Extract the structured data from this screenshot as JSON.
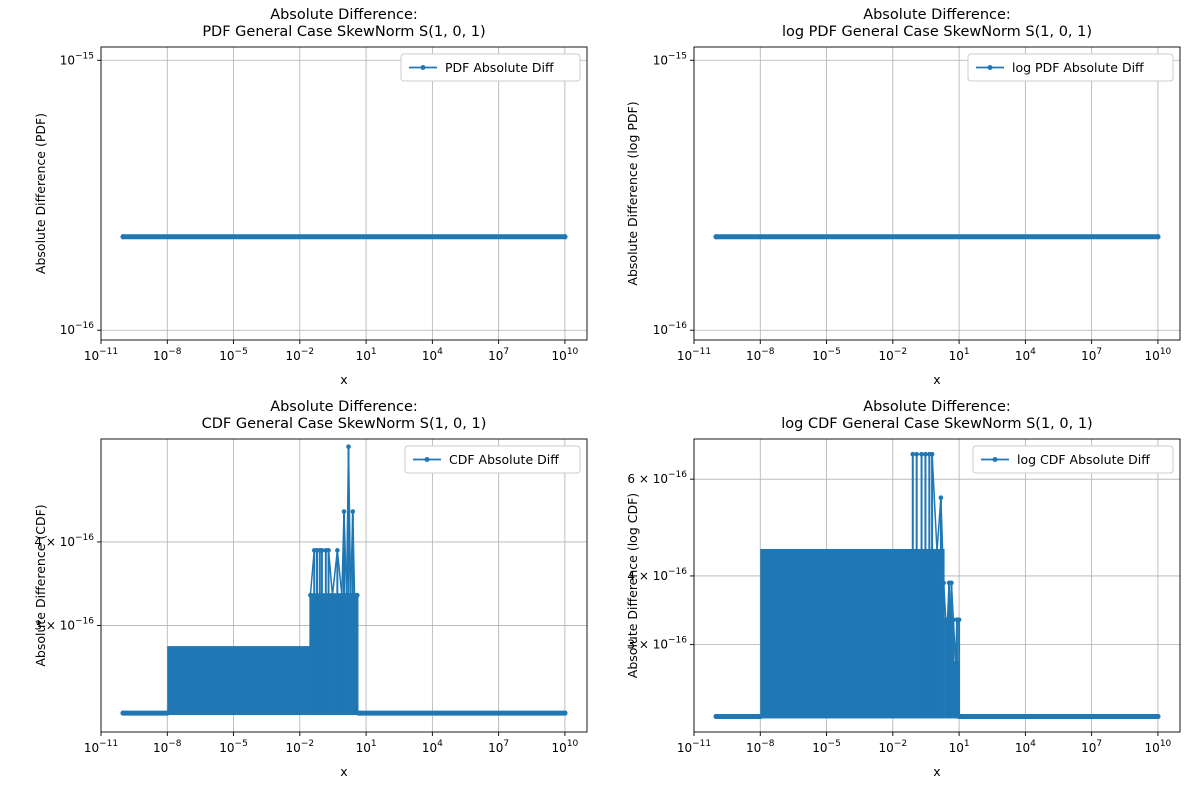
{
  "figure": {
    "background": "#ffffff",
    "series_color": "#1f77b4",
    "grid_color": "#b0b0b0"
  },
  "chart_data": [
    {
      "type": "line",
      "title_lines": [
        "Absolute Difference:",
        "PDF General Case SkewNorm S(1, 0, 1)"
      ],
      "xlabel": "x",
      "ylabel": "Absolute Difference (PDF)",
      "xscale": "log",
      "yscale": "log",
      "xlim": [
        1e-11,
        100000000000.0
      ],
      "ylim": [
        9.2e-17,
        1.12e-15
      ],
      "xticks": [
        {
          "value": 1e-11,
          "base": "10",
          "exp": "−11"
        },
        {
          "value": 1e-08,
          "base": "10",
          "exp": "−8"
        },
        {
          "value": 1e-05,
          "base": "10",
          "exp": "−5"
        },
        {
          "value": 0.01,
          "base": "10",
          "exp": "−2"
        },
        {
          "value": 10.0,
          "base": "10",
          "exp": "1"
        },
        {
          "value": 10000.0,
          "base": "10",
          "exp": "4"
        },
        {
          "value": 10000000.0,
          "base": "10",
          "exp": "7"
        },
        {
          "value": 10000000000.0,
          "base": "10",
          "exp": "10"
        }
      ],
      "yticks": [
        {
          "value": 1e-16,
          "mant": "",
          "base": "10",
          "exp": "−16"
        },
        {
          "value": 1e-15,
          "mant": "",
          "base": "10",
          "exp": "−15"
        }
      ],
      "grid": true,
      "legend": {
        "label": "PDF Absolute Diff",
        "position": "top-right"
      },
      "series": [
        {
          "name": "PDF Absolute Diff",
          "segments": [
            {
              "x": [
                1e-10,
                10000000000.0
              ],
              "y": [
                2.22e-16,
                2.22e-16
              ],
              "kind": "flat"
            }
          ]
        }
      ]
    },
    {
      "type": "line",
      "title_lines": [
        "Absolute Difference:",
        "log PDF General Case SkewNorm S(1, 0, 1)"
      ],
      "xlabel": "x",
      "ylabel": "Absolute Difference (log PDF)",
      "xscale": "log",
      "yscale": "log",
      "xlim": [
        1e-11,
        100000000000.0
      ],
      "ylim": [
        9.2e-17,
        1.12e-15
      ],
      "xticks": [
        {
          "value": 1e-11,
          "base": "10",
          "exp": "−11"
        },
        {
          "value": 1e-08,
          "base": "10",
          "exp": "−8"
        },
        {
          "value": 1e-05,
          "base": "10",
          "exp": "−5"
        },
        {
          "value": 0.01,
          "base": "10",
          "exp": "−2"
        },
        {
          "value": 10.0,
          "base": "10",
          "exp": "1"
        },
        {
          "value": 10000.0,
          "base": "10",
          "exp": "4"
        },
        {
          "value": 10000000.0,
          "base": "10",
          "exp": "7"
        },
        {
          "value": 10000000000.0,
          "base": "10",
          "exp": "10"
        }
      ],
      "yticks": [
        {
          "value": 1e-16,
          "mant": "",
          "base": "10",
          "exp": "−16"
        },
        {
          "value": 1e-15,
          "mant": "",
          "base": "10",
          "exp": "−15"
        }
      ],
      "grid": true,
      "legend": {
        "label": "log PDF Absolute Diff",
        "position": "top-right"
      },
      "series": [
        {
          "name": "log PDF Absolute Diff",
          "segments": [
            {
              "x": [
                1e-10,
                10000000000.0
              ],
              "y": [
                2.22e-16,
                2.22e-16
              ],
              "kind": "flat"
            }
          ]
        }
      ]
    },
    {
      "type": "line",
      "title_lines": [
        "Absolute Difference:",
        "CDF General Case SkewNorm S(1, 0, 1)"
      ],
      "xlabel": "x",
      "ylabel": "Absolute Difference (CDF)",
      "xscale": "log",
      "yscale": "log",
      "xlim": [
        1e-11,
        100000000000.0
      ],
      "ylim": [
        2.08e-16,
        5.7e-16
      ],
      "xticks": [
        {
          "value": 1e-11,
          "base": "10",
          "exp": "−11"
        },
        {
          "value": 1e-08,
          "base": "10",
          "exp": "−8"
        },
        {
          "value": 1e-05,
          "base": "10",
          "exp": "−5"
        },
        {
          "value": 0.01,
          "base": "10",
          "exp": "−2"
        },
        {
          "value": 10.0,
          "base": "10",
          "exp": "1"
        },
        {
          "value": 10000.0,
          "base": "10",
          "exp": "4"
        },
        {
          "value": 10000000.0,
          "base": "10",
          "exp": "7"
        },
        {
          "value": 10000000000.0,
          "base": "10",
          "exp": "10"
        }
      ],
      "yticks": [
        {
          "value": 3e-16,
          "mant": "3 × ",
          "base": "10",
          "exp": "−16"
        },
        {
          "value": 4e-16,
          "mant": "4 × ",
          "base": "10",
          "exp": "−16"
        }
      ],
      "grid": true,
      "legend": {
        "label": "CDF Absolute Diff",
        "position": "top-right"
      },
      "series": [
        {
          "name": "CDF Absolute Diff",
          "segments": [
            {
              "x": [
                1e-10,
                1e-08
              ],
              "y": [
                2.22e-16,
                2.22e-16
              ],
              "kind": "flat"
            },
            {
              "x": [
                1e-08,
                0.03
              ],
              "y": [
                2.22e-16,
                2.776e-16
              ],
              "kind": "band"
            },
            {
              "x": [
                0.03,
                4.5
              ],
              "y": [
                2.22e-16,
                3.33e-16
              ],
              "kind": "band"
            },
            {
              "x": [
                4.5,
                10000000000.0
              ],
              "y": [
                2.22e-16,
                2.22e-16
              ],
              "kind": "flat"
            },
            {
              "x": [
                0.03,
                0.045,
                0.06,
                0.08,
                0.1,
                0.15,
                0.2,
                0.3,
                0.5,
                0.8,
                1.0,
                1.3,
                1.6,
                2.0,
                2.5,
                3.0,
                3.5,
                4.0
              ],
              "y": [
                3.33e-16,
                3.886e-16,
                3.886e-16,
                3.886e-16,
                3.886e-16,
                3.886e-16,
                3.886e-16,
                3.33e-16,
                3.886e-16,
                3.33e-16,
                4.441e-16,
                3.33e-16,
                5.551e-16,
                3.33e-16,
                4.441e-16,
                3.33e-16,
                3.33e-16,
                3.33e-16
              ],
              "kind": "spikes"
            }
          ]
        }
      ]
    },
    {
      "type": "line",
      "title_lines": [
        "Absolute Difference:",
        "log CDF General Case SkewNorm S(1, 0, 1)"
      ],
      "xlabel": "x",
      "ylabel": "Absolute Difference (log CDF)",
      "xscale": "log",
      "yscale": "log",
      "xlim": [
        1e-11,
        100000000000.0
      ],
      "ylim": [
        2.08e-16,
        7.1e-16
      ],
      "xticks": [
        {
          "value": 1e-11,
          "base": "10",
          "exp": "−11"
        },
        {
          "value": 1e-08,
          "base": "10",
          "exp": "−8"
        },
        {
          "value": 1e-05,
          "base": "10",
          "exp": "−5"
        },
        {
          "value": 0.01,
          "base": "10",
          "exp": "−2"
        },
        {
          "value": 10.0,
          "base": "10",
          "exp": "1"
        },
        {
          "value": 10000.0,
          "base": "10",
          "exp": "4"
        },
        {
          "value": 10000000.0,
          "base": "10",
          "exp": "7"
        },
        {
          "value": 10000000000.0,
          "base": "10",
          "exp": "10"
        }
      ],
      "yticks": [
        {
          "value": 3e-16,
          "mant": "3 × ",
          "base": "10",
          "exp": "−16"
        },
        {
          "value": 4e-16,
          "mant": "4 × ",
          "base": "10",
          "exp": "−16"
        },
        {
          "value": 6e-16,
          "mant": "6 × ",
          "base": "10",
          "exp": "−16"
        }
      ],
      "grid": true,
      "legend": {
        "label": "log CDF Absolute Diff",
        "position": "top-right"
      },
      "series": [
        {
          "name": "log CDF Absolute Diff",
          "segments": [
            {
              "x": [
                1e-10,
                1e-08
              ],
              "y": [
                2.22e-16,
                2.22e-16
              ],
              "kind": "flat"
            },
            {
              "x": [
                1e-08,
                2.2
              ],
              "y": [
                2.22e-16,
                4.441e-16
              ],
              "kind": "band"
            },
            {
              "x": [
                2.2,
                5.0
              ],
              "y": [
                2.22e-16,
                3.33e-16
              ],
              "kind": "band"
            },
            {
              "x": [
                5.0,
                10.0
              ],
              "y": [
                2.22e-16,
                2.776e-16
              ],
              "kind": "band"
            },
            {
              "x": [
                10.0,
                10000000000.0
              ],
              "y": [
                2.22e-16,
                2.22e-16
              ],
              "kind": "flat"
            },
            {
              "x": [
                0.08,
                0.12,
                0.2,
                0.3,
                0.45,
                0.6,
                1.0,
                1.5,
                2.0,
                2.5,
                3.0,
                3.5,
                4.0,
                4.5,
                5.5,
                7.0,
                8.0,
                10.0
              ],
              "y": [
                6.661e-16,
                6.661e-16,
                6.661e-16,
                6.661e-16,
                6.661e-16,
                6.661e-16,
                4.441e-16,
                5.551e-16,
                3.886e-16,
                3.33e-16,
                3.33e-16,
                3.886e-16,
                3.3e-16,
                3.886e-16,
                3.33e-16,
                2.776e-16,
                3.33e-16,
                3.33e-16
              ],
              "kind": "spikes"
            }
          ]
        }
      ]
    }
  ]
}
